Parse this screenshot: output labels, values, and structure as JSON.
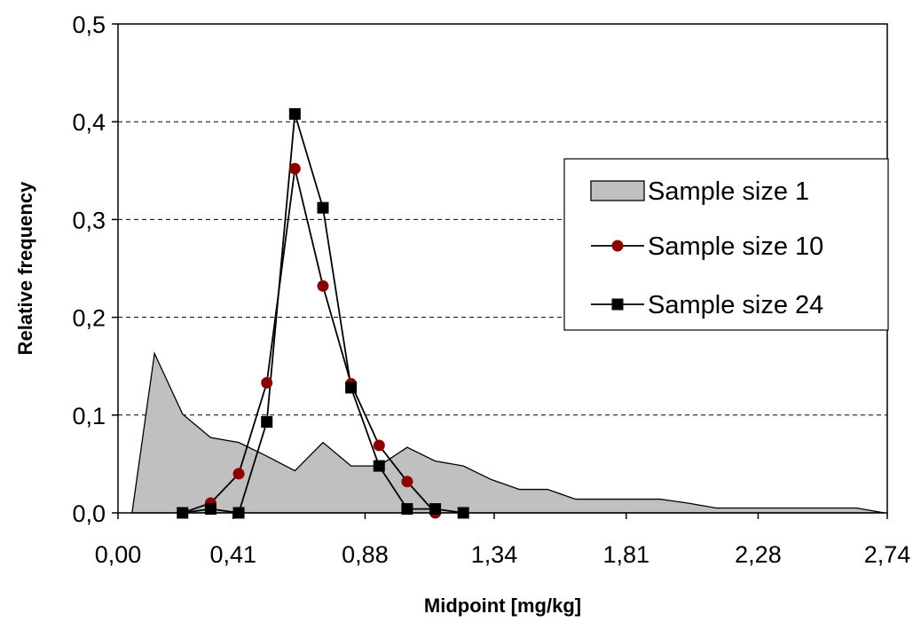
{
  "chart_data": {
    "type": "area",
    "title": "",
    "xlabel": "Midpoint [mg/kg]",
    "ylabel": "Relative frequency",
    "xlim": [
      0,
      2.74
    ],
    "ylim": [
      0,
      0.5
    ],
    "x_ticks": [
      0.0,
      0.41,
      0.88,
      1.34,
      1.81,
      2.28,
      2.74
    ],
    "x_tick_labels": [
      "0,00",
      "0,41",
      "0,88",
      "1,34",
      "1,81",
      "2,28",
      "2,74"
    ],
    "y_ticks": [
      0.0,
      0.1,
      0.2,
      0.3,
      0.4,
      0.5
    ],
    "y_tick_labels": [
      "0,0",
      "0,1",
      "0,2",
      "0,3",
      "0,4",
      "0,5"
    ],
    "grid": "horizontal-dashed",
    "legend": "right",
    "series": [
      {
        "name": "Sample size 1",
        "kind": "area",
        "color": "#c0c0c0",
        "x": [
          0.05,
          0.13,
          0.23,
          0.33,
          0.43,
          0.53,
          0.63,
          0.73,
          0.83,
          0.93,
          1.03,
          1.13,
          1.23,
          1.33,
          1.43,
          1.53,
          1.63,
          1.73,
          1.83,
          1.93,
          2.03,
          2.13,
          2.23,
          2.33,
          2.43,
          2.53,
          2.63,
          2.73
        ],
        "values": [
          0.0,
          0.163,
          0.101,
          0.077,
          0.072,
          0.058,
          0.043,
          0.072,
          0.048,
          0.048,
          0.067,
          0.053,
          0.048,
          0.034,
          0.024,
          0.024,
          0.014,
          0.014,
          0.014,
          0.014,
          0.01,
          0.005,
          0.005,
          0.005,
          0.005,
          0.005,
          0.005,
          0.0
        ]
      },
      {
        "name": "Sample size 10",
        "kind": "line",
        "marker": "circle",
        "color": "#8b0000",
        "x": [
          0.23,
          0.33,
          0.43,
          0.53,
          0.63,
          0.73,
          0.83,
          0.93,
          1.03,
          1.13
        ],
        "values": [
          0.0,
          0.01,
          0.04,
          0.133,
          0.352,
          0.232,
          0.132,
          0.069,
          0.032,
          0.0
        ]
      },
      {
        "name": "Sample size 24",
        "kind": "line",
        "marker": "square",
        "color": "#000000",
        "x": [
          0.23,
          0.33,
          0.43,
          0.53,
          0.63,
          0.73,
          0.83,
          0.93,
          1.03,
          1.13,
          1.23
        ],
        "values": [
          0.0,
          0.004,
          0.0,
          0.093,
          0.408,
          0.312,
          0.128,
          0.048,
          0.004,
          0.004,
          0.0
        ]
      }
    ]
  }
}
